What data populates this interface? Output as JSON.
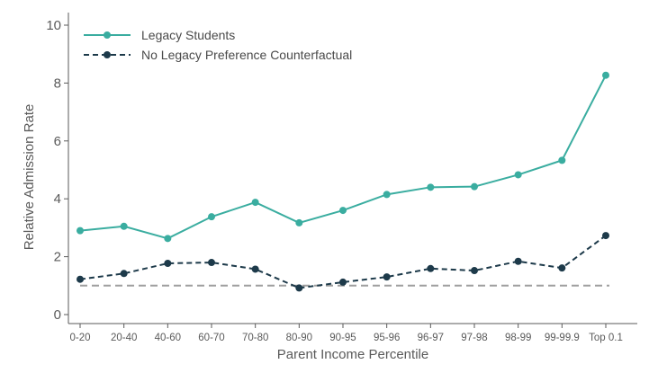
{
  "chart_data": {
    "type": "line",
    "title": "",
    "xlabel": "Parent Income Percentile",
    "ylabel": "Relative Admission Rate",
    "ylim": [
      0,
      10
    ],
    "yticks": [
      "0",
      "2",
      "4",
      "6",
      "8",
      "10"
    ],
    "grid": false,
    "legend_position": "top-left",
    "categories": [
      "0-20",
      "20-40",
      "40-60",
      "60-70",
      "70-80",
      "80-90",
      "90-95",
      "95-96",
      "96-97",
      "97-98",
      "98-99",
      "99-99.9",
      "Top 0.1"
    ],
    "series": [
      {
        "name": "Legacy Students",
        "style": "solid",
        "color": "#3aada0",
        "values": [
          2.9,
          3.05,
          2.63,
          3.38,
          3.88,
          3.17,
          3.6,
          4.15,
          4.4,
          4.42,
          4.83,
          5.33,
          8.27
        ]
      },
      {
        "name": "No Legacy Preference Counterfactual",
        "style": "dashed",
        "color": "#1d3a4a",
        "values": [
          1.22,
          1.42,
          1.77,
          1.8,
          1.57,
          0.92,
          1.12,
          1.3,
          1.59,
          1.52,
          1.84,
          1.61,
          2.73
        ]
      }
    ],
    "reference_line": {
      "value": 1.0,
      "color": "#9e9e9e",
      "style": "dashed"
    }
  }
}
